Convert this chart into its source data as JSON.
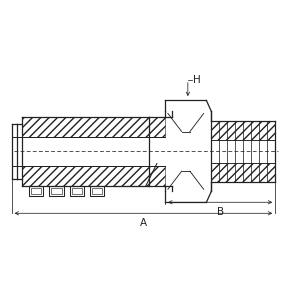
{
  "bg_color": "#ffffff",
  "line_color": "#222222",
  "dim_A_label": "A",
  "dim_B_label": "B",
  "dim_H_label": "H",
  "figsize": [
    3.0,
    3.0
  ],
  "dpi": 100
}
